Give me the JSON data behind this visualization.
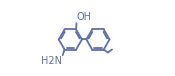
{
  "bg_color": "#ffffff",
  "line_color": "#6070a8",
  "text_color": "#6070a8",
  "line_width": 1.3,
  "font_size": 7.0,
  "r1x": 0.27,
  "r1y": 0.48,
  "r2x": 0.64,
  "r2y": 0.48,
  "R": 0.155,
  "oh_label": "OH",
  "nh2_label": "H2N"
}
